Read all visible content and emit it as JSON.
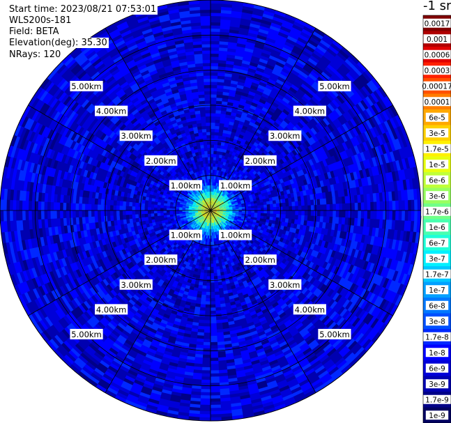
{
  "header": {
    "start_time": "Start time: 2023/08/21 07:53:01",
    "instrument": "WLS200s-181",
    "field": "Field: BETA",
    "elevation": "Elevation(deg): 35.30",
    "nrays": "NRays: 120"
  },
  "colorbar": {
    "unit": "-1 sr",
    "labels": [
      "0.0017",
      "0.001",
      "0.0006",
      "0.0003",
      "0.00017",
      "0.0001",
      "6e-5",
      "3e-5",
      "1.7e-5",
      "1e-5",
      "6e-6",
      "3e-6",
      "1.7e-6",
      "1e-6",
      "6e-7",
      "3e-7",
      "1.7e-7",
      "1e-7",
      "6e-8",
      "3e-8",
      "1.7e-8",
      "1e-8",
      "6e-9",
      "3e-9",
      "1.7e-9",
      "1e-9"
    ],
    "colors": [
      "#800000",
      "#b00000",
      "#e00000",
      "#ff2000",
      "#ff5000",
      "#ff7d00",
      "#ffa800",
      "#ffd000",
      "#fff000",
      "#e8ff10",
      "#c0ff38",
      "#98ff60",
      "#70ff88",
      "#48ffb0",
      "#20ffd8",
      "#00f0ff",
      "#00c8ff",
      "#00a0ff",
      "#0078ff",
      "#0050ff",
      "#0028ff",
      "#0000ff",
      "#0000d8",
      "#0000b0",
      "#000088",
      "#000060"
    ]
  },
  "chart_data": {
    "type": "heatmap",
    "projection": "polar PPI (range-azimuth)",
    "field": "BETA",
    "units": "sr-1",
    "elevation_deg": 35.3,
    "n_rays": 120,
    "range_rings_km": [
      1.0,
      2.0,
      3.0,
      4.0,
      5.0
    ],
    "range_ring_labels": [
      "1.00km",
      "2.00km",
      "3.00km",
      "4.00km",
      "5.00km"
    ],
    "spoke_angles_deg": [
      0,
      30,
      60,
      90,
      120,
      150,
      180,
      210,
      240,
      270,
      300,
      330
    ],
    "max_range_km": 6.0,
    "color_scale": "log",
    "vmin": 1e-09,
    "vmax": 0.0017,
    "near_field_peak": 1.7e-05,
    "background_typical": 6e-09
  }
}
